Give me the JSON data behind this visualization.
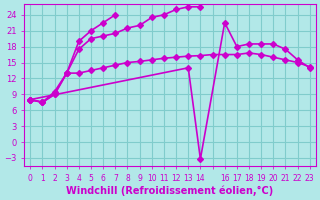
{
  "background_color": "#b2e8e8",
  "grid_color": "#80cccc",
  "line_color": "#cc00cc",
  "marker": "D",
  "markersize": 3,
  "linewidth": 1.2,
  "xlabel": "Windchill (Refroidissement éolien,°C)",
  "xlabel_fontsize": 7,
  "tick_fontsize": 6,
  "xlim": [
    -0.5,
    23.5
  ],
  "ylim": [
    -4.5,
    26
  ],
  "yticks": [
    -3,
    0,
    3,
    6,
    9,
    12,
    15,
    18,
    21,
    24
  ],
  "xticks": [
    0,
    1,
    2,
    3,
    4,
    5,
    6,
    7,
    8,
    9,
    10,
    11,
    12,
    13,
    14,
    15,
    16,
    17,
    18,
    19,
    20,
    21,
    22,
    23
  ],
  "xtick_labels": [
    "0",
    "1",
    "2",
    "3",
    "4",
    "5",
    "6",
    "7",
    "8",
    "9",
    "10",
    "11",
    "12",
    "13",
    "14",
    "",
    "16",
    "17",
    "18",
    "19",
    "20",
    "21",
    "22",
    "23"
  ],
  "series": [
    {
      "x": [
        0,
        1,
        2,
        3,
        4,
        5,
        6,
        7,
        8,
        9,
        10,
        11,
        12,
        13,
        14,
        15,
        16,
        17,
        18,
        19,
        20,
        21,
        22,
        23
      ],
      "y": [
        8.0,
        7.5,
        9.0,
        13.0,
        13.0,
        13.5,
        14.0,
        14.5,
        15.0,
        15.2,
        15.5,
        15.8,
        16.0,
        16.2,
        16.3,
        16.5,
        16.5,
        16.5,
        16.8,
        16.5,
        16.0,
        15.5,
        15.0,
        14.2
      ]
    },
    {
      "x": [
        0,
        1,
        2,
        3,
        4,
        5,
        6,
        7,
        8,
        9,
        10,
        11,
        12,
        13,
        14
      ],
      "y": [
        8.0,
        7.5,
        9.0,
        13.0,
        17.5,
        19.5,
        20.0,
        20.5,
        21.5,
        22.0,
        23.5,
        24.0,
        25.0,
        25.5,
        25.5
      ]
    },
    {
      "x": [
        0,
        1,
        2,
        3,
        4,
        5,
        6,
        7
      ],
      "y": [
        8.0,
        7.5,
        9.5,
        13.0,
        19.0,
        21.0,
        22.5,
        24.0
      ]
    },
    {
      "x": [
        0,
        13,
        14,
        16,
        17,
        18,
        19,
        20,
        21,
        22,
        23
      ],
      "y": [
        8.0,
        14.0,
        -3.2,
        22.5,
        18.0,
        18.5,
        18.5,
        18.5,
        17.5,
        15.5,
        14.0
      ]
    }
  ]
}
